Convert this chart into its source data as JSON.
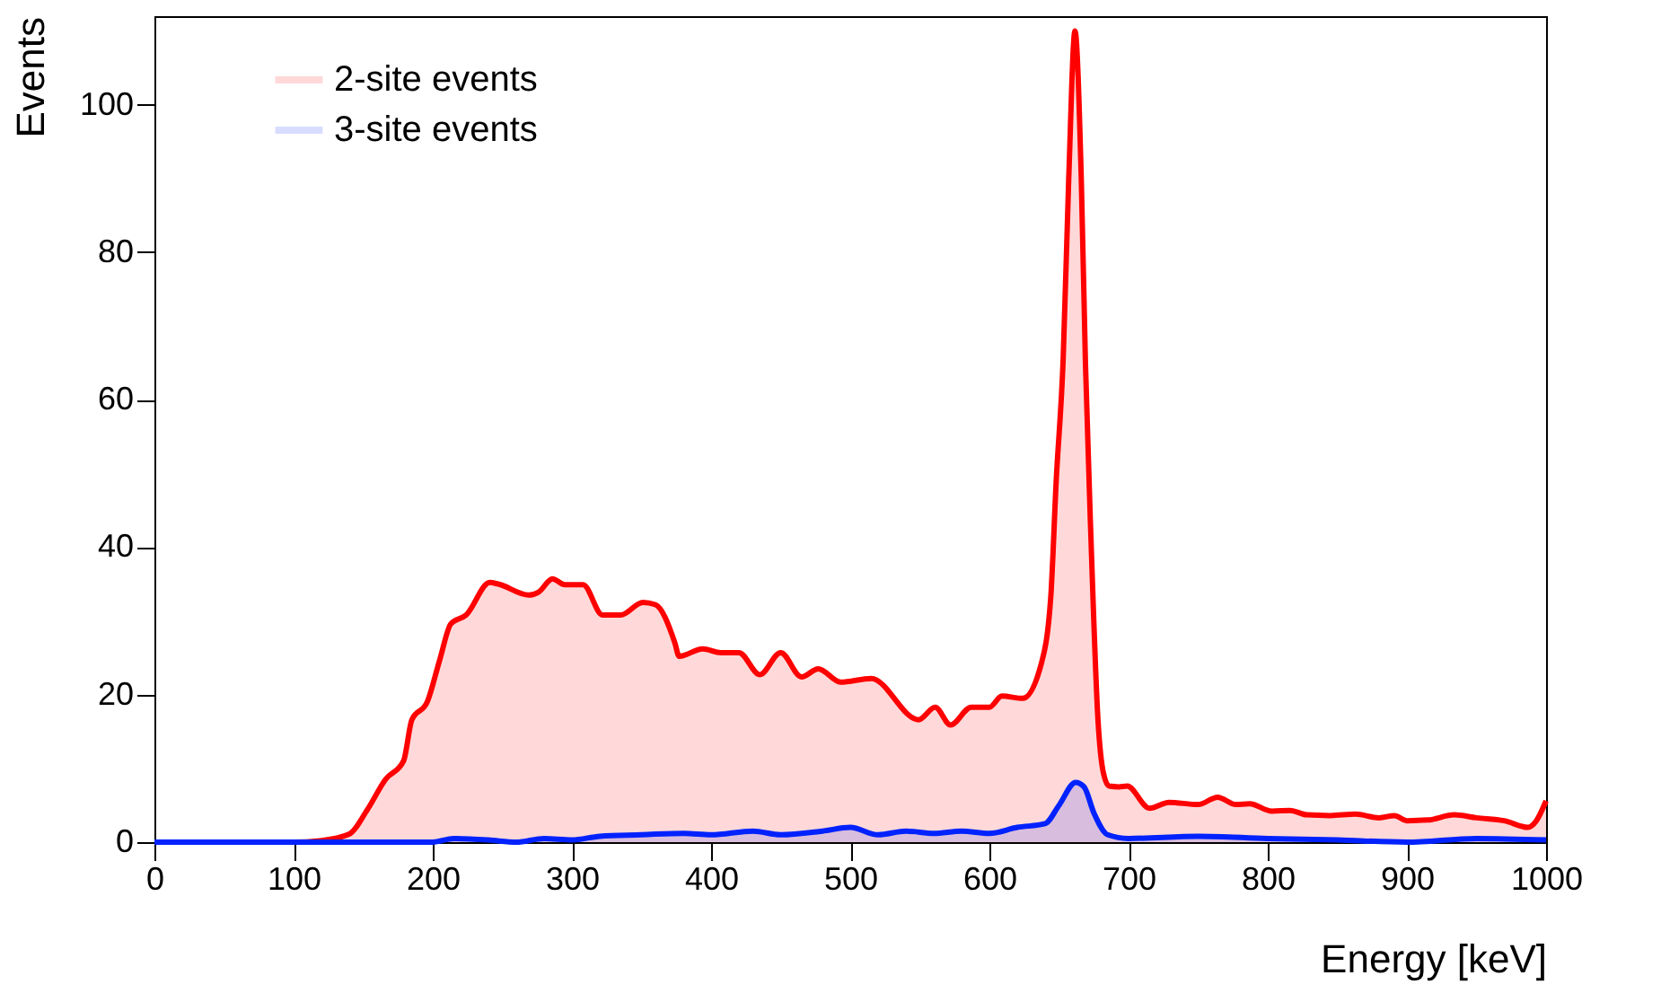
{
  "chart_data": {
    "type": "area",
    "xlabel": "Energy [keV]",
    "ylabel": "Events",
    "xlim": [
      0,
      1000
    ],
    "ylim": [
      0,
      112
    ],
    "xticks": [
      0,
      100,
      200,
      300,
      400,
      500,
      600,
      700,
      800,
      900,
      1000
    ],
    "yticks": [
      0,
      20,
      40,
      60,
      80,
      100
    ],
    "grid": false,
    "legend": "top left",
    "line_style": "solid",
    "series": [
      {
        "name": "2-site events",
        "color": "#ff0000",
        "x": [
          0,
          100,
          119,
          140,
          153,
          166,
          179,
          185,
          196,
          205,
          213,
          224,
          241,
          247,
          269,
          276,
          286,
          295,
          308,
          322,
          335,
          351,
          360,
          374,
          377,
          394,
          407,
          420,
          435,
          450,
          465,
          477,
          493,
          515,
          549,
          561,
          572,
          587,
          600,
          609,
          624,
          637,
          644,
          648,
          653,
          657,
          661.5,
          666,
          669,
          673,
          678,
          682,
          686,
          693,
          699,
          715,
          729,
          750,
          764,
          777,
          787,
          803,
          816,
          828,
          845,
          863,
          880,
          891,
          900,
          915,
          934,
          950,
          970,
          987,
          993,
          1000
        ],
        "values": [
          0,
          0,
          0.2,
          1.1,
          4.4,
          8.5,
          11,
          16.6,
          19,
          24.7,
          29.6,
          30.8,
          35.2,
          35,
          33.5,
          33.9,
          35.7,
          34.9,
          34.9,
          30.8,
          30.8,
          32.5,
          32.2,
          27,
          25.2,
          26.2,
          25.7,
          25.7,
          22.7,
          25.7,
          22.4,
          23.5,
          21.7,
          22.2,
          16.6,
          18.3,
          15.9,
          18.3,
          18.3,
          19.8,
          19.5,
          24,
          33,
          49,
          65.5,
          90,
          110,
          90,
          65,
          41,
          16.6,
          9.3,
          7.6,
          7.5,
          7.6,
          4.6,
          5.4,
          5.1,
          6.1,
          5.1,
          5.2,
          4.2,
          4.3,
          3.7,
          3.6,
          3.8,
          3.3,
          3.6,
          2.9,
          3,
          3.7,
          3.3,
          2.9,
          2,
          2.9,
          5.6
        ]
      },
      {
        "name": "3-site events",
        "color": "#0022ff",
        "x": [
          0,
          200,
          215,
          240,
          260,
          280,
          300,
          320,
          350,
          380,
          400,
          430,
          450,
          480,
          500,
          520,
          540,
          560,
          580,
          600,
          620,
          640,
          650,
          662,
          668,
          675,
          685,
          700,
          750,
          800,
          850,
          900,
          950,
          1000
        ],
        "values": [
          0,
          0,
          0.5,
          0.3,
          0,
          0.5,
          0.3,
          0.8,
          1,
          1.2,
          1,
          1.5,
          1,
          1.5,
          2,
          1,
          1.5,
          1.2,
          1.5,
          1.2,
          2,
          2.5,
          5,
          8.1,
          7.5,
          4,
          1,
          0.5,
          0.8,
          0.5,
          0.3,
          0,
          0.5,
          0.3
        ]
      }
    ]
  }
}
